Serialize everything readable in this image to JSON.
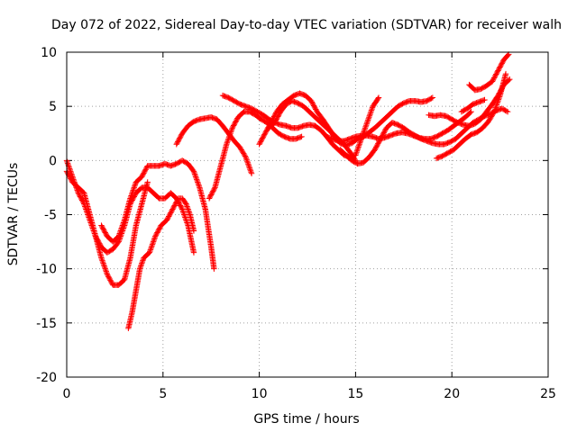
{
  "chart_data": {
    "type": "scatter",
    "title": "Day 072 of 2022, Sidereal Day-to-day VTEC variation (SDTVAR) for receiver walh",
    "xlabel": "GPS time / hours",
    "ylabel": "SDTVAR / TECUs",
    "xlim": [
      0,
      25
    ],
    "ylim": [
      -20,
      10
    ],
    "x_ticks": [
      0,
      5,
      10,
      15,
      20,
      25
    ],
    "y_ticks": [
      -20,
      -15,
      -10,
      -5,
      0,
      5,
      10
    ],
    "grid": true,
    "marker": "plus",
    "color": "#ff0000",
    "series": [
      {
        "x": [
          0,
          0.3,
          0.6,
          0.9,
          1.2,
          1.5,
          1.8,
          2.1,
          2.4,
          2.7,
          3.0,
          3.3,
          3.6,
          3.9,
          4.2,
          4.5,
          4.8,
          5.1,
          5.4,
          5.7,
          6.0,
          6.3,
          6.6
        ],
        "y": [
          0,
          -1.5,
          -3,
          -4,
          -5.5,
          -7,
          -8,
          -8.5,
          -8.2,
          -7.5,
          -6,
          -4,
          -3,
          -2.5,
          -2.5,
          -3,
          -3.5,
          -3.5,
          -3,
          -3.5,
          -4.5,
          -6,
          -8.5
        ]
      },
      {
        "x": [
          0,
          0.3,
          0.6,
          0.9,
          1.2,
          1.5,
          1.8,
          2.1,
          2.4,
          2.7,
          3.0,
          3.3,
          3.6,
          3.9,
          4.2
        ],
        "y": [
          -1,
          -2,
          -2.5,
          -3,
          -5,
          -7,
          -9,
          -10.5,
          -11.5,
          -11.5,
          -11,
          -9,
          -6,
          -4,
          -2
        ]
      },
      {
        "x": [
          1.8,
          2.1,
          2.4,
          2.7,
          3.0,
          3.3,
          3.6,
          3.9,
          4.2,
          4.5,
          4.8,
          5.1,
          5.4,
          5.7,
          6.0,
          6.3,
          6.6,
          6.9,
          7.2,
          7.5,
          7.65
        ],
        "y": [
          -6,
          -7,
          -7.5,
          -7,
          -5.5,
          -3.5,
          -2,
          -1.5,
          -0.5,
          -0.5,
          -0.5,
          -0.3,
          -0.5,
          -0.3,
          0,
          -0.3,
          -1,
          -2.5,
          -4.5,
          -8,
          -10
        ]
      },
      {
        "x": [
          3.2,
          3.4,
          3.6,
          3.8,
          4.0,
          4.3,
          4.6,
          4.9,
          5.2,
          5.5,
          5.8,
          6.0,
          6.2,
          6.4,
          6.6
        ],
        "y": [
          -15.5,
          -14,
          -12,
          -10,
          -9,
          -8.5,
          -7,
          -6,
          -5.5,
          -4.5,
          -3.5,
          -3.5,
          -4,
          -5,
          -6.5
        ]
      },
      {
        "x": [
          5.7,
          6.0,
          6.3,
          6.6,
          6.9,
          7.2,
          7.5,
          7.8,
          8.1,
          8.4,
          8.7,
          9.0,
          9.3,
          9.6
        ],
        "y": [
          1.5,
          2.5,
          3.2,
          3.6,
          3.8,
          3.9,
          4,
          3.8,
          3.2,
          2.5,
          1.8,
          1.2,
          0.3,
          -1.2
        ]
      },
      {
        "x": [
          7.4,
          7.7,
          8.0,
          8.3,
          8.6,
          8.9,
          9.2,
          9.5,
          9.8,
          10.1,
          10.4,
          10.7,
          11.0,
          11.3,
          11.6,
          11.9,
          12.2
        ],
        "y": [
          -3.5,
          -2.5,
          -0.5,
          1.5,
          3,
          4,
          4.5,
          4.5,
          4.2,
          3.8,
          3.5,
          3,
          2.5,
          2.2,
          2,
          2,
          2.2
        ]
      },
      {
        "x": [
          8.1,
          8.4,
          8.7,
          9.0,
          9.3,
          9.6,
          9.9,
          10.2,
          10.5,
          10.8,
          11.1,
          11.4,
          11.7,
          12.0,
          12.3,
          12.6,
          12.9,
          13.2,
          13.5,
          13.8,
          14.1,
          14.4,
          14.7,
          15.0,
          15.3,
          15.6,
          15.9,
          16.2
        ],
        "y": [
          6,
          5.8,
          5.5,
          5.2,
          5,
          4.8,
          4.5,
          4.2,
          3.8,
          3.5,
          3.3,
          3.2,
          3,
          3,
          3.2,
          3.3,
          3.2,
          2.8,
          2.2,
          1.5,
          1,
          0.5,
          0.3,
          0.5,
          2,
          3.5,
          5,
          5.8
        ]
      },
      {
        "x": [
          10.0,
          10.3,
          10.6,
          10.9,
          11.2,
          11.5,
          11.8,
          12.1,
          12.4,
          12.7,
          13.0,
          13.3,
          13.6,
          13.9,
          14.2,
          14.5,
          14.8,
          15.1,
          15.4,
          15.7,
          16.0,
          16.3,
          16.6,
          16.9,
          17.2,
          17.5,
          17.8,
          18.1,
          18.4,
          18.7,
          19.0
        ],
        "y": [
          1.5,
          2.5,
          3.5,
          4.5,
          5.2,
          5.6,
          6,
          6.2,
          6,
          5.5,
          4.5,
          3.8,
          3,
          2.2,
          1.6,
          1.4,
          1.6,
          2,
          2.2,
          2.6,
          3,
          3.5,
          4,
          4.5,
          5,
          5.3,
          5.5,
          5.5,
          5.4,
          5.5,
          5.8
        ]
      },
      {
        "x": [
          10.5,
          10.8,
          11.1,
          11.4,
          11.7,
          12.0,
          12.3,
          12.6,
          12.9,
          13.2,
          13.5,
          13.8,
          14.1,
          14.4,
          14.7,
          15.0
        ],
        "y": [
          3,
          3.5,
          4.5,
          5.2,
          5.5,
          5.3,
          5,
          4.5,
          4,
          3.5,
          3,
          2.5,
          2,
          1.5,
          0.8,
          0
        ]
      },
      {
        "x": [
          13.5,
          13.8,
          14.1,
          14.4,
          14.7,
          15.0,
          15.3,
          15.6,
          15.9,
          16.2,
          16.5,
          16.8,
          17.1,
          17.4,
          17.7,
          18.0,
          18.3,
          18.6,
          18.9,
          19.2,
          19.5,
          19.8,
          20.1,
          20.4,
          20.7,
          21.0
        ],
        "y": [
          2.2,
          2,
          1.8,
          1.8,
          2,
          2.2,
          2.3,
          2.3,
          2.2,
          2,
          2.1,
          2.3,
          2.5,
          2.6,
          2.5,
          2.3,
          2.1,
          2,
          2,
          2.2,
          2.5,
          2.8,
          3.2,
          3.6,
          4,
          4.5
        ]
      },
      {
        "x": [
          14.2,
          14.5,
          14.8,
          15.1,
          15.4,
          15.7,
          16.0,
          16.3,
          16.6,
          16.9,
          17.2,
          17.5,
          17.8,
          18.1,
          18.4,
          18.7,
          19.0,
          19.3,
          19.6,
          19.9,
          20.2,
          20.5,
          20.8,
          21.1,
          21.4,
          21.7,
          22.0,
          22.3,
          22.6,
          22.9
        ],
        "y": [
          1,
          0.5,
          0,
          -0.3,
          -0.2,
          0.3,
          1,
          2,
          3,
          3.5,
          3.3,
          3,
          2.6,
          2.3,
          2,
          1.8,
          1.6,
          1.5,
          1.5,
          1.7,
          2,
          2.5,
          3,
          3.5,
          3.8,
          4.1,
          4.3,
          4.6,
          4.8,
          4.5
        ]
      },
      {
        "x": [
          18.8,
          19.1,
          19.4,
          19.7,
          20.0,
          20.3,
          20.6,
          20.9,
          21.2,
          21.5,
          21.8,
          22.1,
          22.4,
          22.7,
          23.0
        ],
        "y": [
          4.2,
          4.1,
          4.2,
          4.1,
          3.8,
          3.5,
          3.3,
          3.2,
          3.4,
          3.8,
          4.5,
          5.2,
          6,
          7,
          7.5
        ]
      },
      {
        "x": [
          19.2,
          19.5,
          19.8,
          20.1,
          20.4,
          20.7,
          21.0,
          21.3,
          21.6,
          21.9,
          22.2,
          22.5,
          22.8
        ],
        "y": [
          0.2,
          0.4,
          0.7,
          1,
          1.5,
          2,
          2.4,
          2.6,
          3,
          3.6,
          4.5,
          6,
          8
        ]
      },
      {
        "x": [
          20.5,
          20.8,
          21.1,
          21.4,
          21.7
        ],
        "y": [
          4.5,
          4.8,
          5.2,
          5.4,
          5.6
        ]
      },
      {
        "x": [
          20.9,
          21.2,
          21.5,
          21.8,
          22.1,
          22.4,
          22.7,
          22.95
        ],
        "y": [
          7,
          6.5,
          6.6,
          6.9,
          7.3,
          8.3,
          9.3,
          9.8
        ]
      }
    ]
  }
}
